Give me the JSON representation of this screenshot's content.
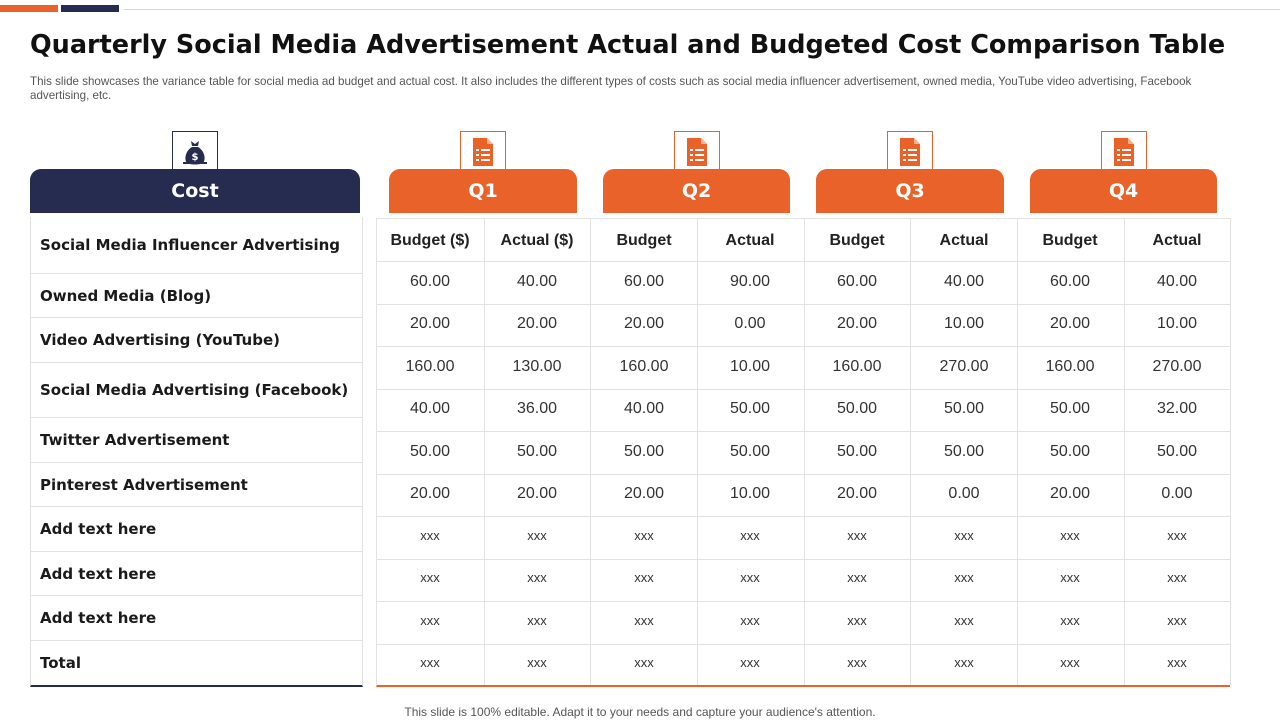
{
  "colors": {
    "accent_orange": "#E8622A",
    "accent_navy": "#252C4F",
    "grid": "#e2e2e2"
  },
  "title": "Quarterly Social Media Advertisement Actual and Budgeted Cost Comparison Table",
  "subtitle": "This slide showcases the variance table for social media ad budget and actual cost. It also includes the different types of costs such as social media influencer advertisement, owned media, YouTube video advertising, Facebook advertising, etc.",
  "footer": "This slide is 100% editable. Adapt it to your needs and capture your audience's attention.",
  "icons": {
    "cost": "money-bag-icon",
    "quarter": "document-list-icon"
  },
  "chart_data": {
    "type": "table",
    "title": "Quarterly Social Media Advertisement Actual and Budgeted Cost Comparison Table",
    "row_header": "Cost",
    "quarters": [
      {
        "label": "Q1",
        "columns": [
          "Budget ($)",
          "Actual ($)"
        ]
      },
      {
        "label": "Q2",
        "columns": [
          "Budget",
          "Actual"
        ]
      },
      {
        "label": "Q3",
        "columns": [
          "Budget",
          "Actual"
        ]
      },
      {
        "label": "Q4",
        "columns": [
          "Budget",
          "Actual"
        ]
      }
    ],
    "rows": [
      {
        "label": "Social Media Influencer Advertising",
        "values": [
          "60.00",
          "40.00",
          "60.00",
          "90.00",
          "60.00",
          "40.00",
          "60.00",
          "40.00"
        ]
      },
      {
        "label": "Owned Media (Blog)",
        "values": [
          "20.00",
          "20.00",
          "20.00",
          "0.00",
          "20.00",
          "10.00",
          "20.00",
          "10.00"
        ]
      },
      {
        "label": "Video Advertising (YouTube)",
        "values": [
          "160.00",
          "130.00",
          "160.00",
          "10.00",
          "160.00",
          "270.00",
          "160.00",
          "270.00"
        ]
      },
      {
        "label": "Social Media Advertising (Facebook)",
        "values": [
          "40.00",
          "36.00",
          "40.00",
          "50.00",
          "50.00",
          "50.00",
          "50.00",
          "32.00"
        ]
      },
      {
        "label": "Twitter Advertisement",
        "values": [
          "50.00",
          "50.00",
          "50.00",
          "50.00",
          "50.00",
          "50.00",
          "50.00",
          "50.00"
        ]
      },
      {
        "label": "Pinterest Advertisement",
        "values": [
          "20.00",
          "20.00",
          "20.00",
          "10.00",
          "20.00",
          "0.00",
          "20.00",
          "0.00"
        ]
      },
      {
        "label": "Add text here",
        "values": [
          "xxx",
          "xxx",
          "xxx",
          "xxx",
          "xxx",
          "xxx",
          "xxx",
          "xxx"
        ]
      },
      {
        "label": "Add text here",
        "values": [
          "xxx",
          "xxx",
          "xxx",
          "xxx",
          "xxx",
          "xxx",
          "xxx",
          "xxx"
        ]
      },
      {
        "label": "Add text here",
        "values": [
          "xxx",
          "xxx",
          "xxx",
          "xxx",
          "xxx",
          "xxx",
          "xxx",
          "xxx"
        ]
      },
      {
        "label": "Total",
        "values": [
          "xxx",
          "xxx",
          "xxx",
          "xxx",
          "xxx",
          "xxx",
          "xxx",
          "xxx"
        ]
      }
    ]
  }
}
